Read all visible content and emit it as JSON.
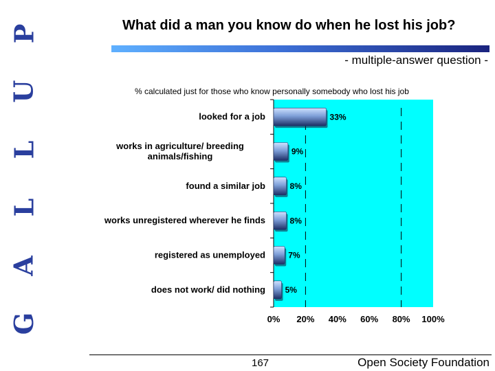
{
  "branding": {
    "side_letters": [
      "G",
      "A",
      "L",
      "L",
      "U",
      "P"
    ]
  },
  "title": "What did a man you know do when he lost his job?",
  "subtitle": "- multiple-answer question -",
  "note": "% calculated just for those who know personally  somebody who lost his job",
  "footer": {
    "page_number": "167",
    "organization": "Open Society Foundation"
  },
  "colors": {
    "plot_background": "#00FFFF",
    "bar_light": "#cfe2ff",
    "bar_mid": "#7e9fd8",
    "bar_dark": "#1d2f66",
    "title_bar_start": "#5fb0ff",
    "title_bar_end": "#1a237e",
    "side_letters": "#2a3f9e"
  },
  "chart_data": {
    "type": "bar",
    "orientation": "horizontal",
    "categories": [
      [
        "looked for a job"
      ],
      [
        "works in agriculture/ breeding",
        "animals/fishing"
      ],
      [
        "found a similar job"
      ],
      [
        "works unregistered wherever he finds"
      ],
      [
        "registered as unemployed"
      ],
      [
        "does not work/ did nothing"
      ]
    ],
    "values": [
      33,
      9,
      8,
      8,
      7,
      5
    ],
    "value_labels": [
      "33%",
      "9%",
      "8%",
      "8%",
      "7%",
      "5%"
    ],
    "xlim": [
      0,
      100
    ],
    "xticks": [
      0,
      20,
      40,
      60,
      80,
      100
    ],
    "xtick_labels": [
      "0%",
      "20%",
      "40%",
      "60%",
      "80%",
      "100%"
    ],
    "gridlines": [
      20,
      80
    ],
    "grid_style": "dashed vertical"
  }
}
